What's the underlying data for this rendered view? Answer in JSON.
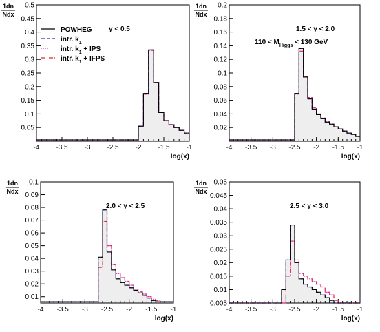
{
  "colors": {
    "powheg": "#000000",
    "intr_k1": "#2b2bd6",
    "intr_k1_ips": "#e040e0",
    "intr_k1_ifps": "#e82020",
    "fill": "#eeeeee"
  },
  "legend": {
    "entries": [
      {
        "key": "powheg",
        "label": "POWHEG",
        "dash": ""
      },
      {
        "key": "intr_k1",
        "label": "intr. k",
        "sub": "1",
        "dash": "5,3"
      },
      {
        "key": "intr_k1_ips",
        "label": "intr. k",
        "sub": "1",
        "suffix": " + IPS",
        "dash": "1,2"
      },
      {
        "key": "intr_k1_ifps",
        "label": "intr. k",
        "sub": "1",
        "suffix": " + IFPS",
        "dash": "6,2,1,2"
      }
    ]
  },
  "ylabel": {
    "num": "1dn",
    "den": "Ndx"
  },
  "chart_data": [
    {
      "type": "line",
      "panel": "top-left",
      "title": "y < 0.5",
      "xlabel": "log(x)",
      "xlim": [
        -4,
        -1
      ],
      "ylim": [
        0,
        0.5
      ],
      "x_ticks": [
        "-4",
        "-3.5",
        "-3",
        "-2.5",
        "-2",
        "-1.5",
        "-1"
      ],
      "y_ticks": [
        "0.05",
        "0.1",
        "0.15",
        "0.2",
        "0.25",
        "0.3",
        "0.35",
        "0.4",
        "0.45",
        "0.5"
      ],
      "bin_width": 0.1,
      "x_bin_start": [
        -4.0,
        -3.9,
        -3.8,
        -3.7,
        -3.6,
        -3.5,
        -3.4,
        -3.3,
        -3.2,
        -3.1,
        -3.0,
        -2.9,
        -2.8,
        -2.7,
        -2.6,
        -2.5,
        -2.4,
        -2.3,
        -2.2,
        -2.1,
        -2.0,
        -1.9,
        -1.8,
        -1.7,
        -1.6,
        -1.5,
        -1.4,
        -1.3,
        -1.2,
        -1.1
      ],
      "series": [
        {
          "name": "POWHEG",
          "key": "powheg",
          "values": [
            0.005,
            0.005,
            0.005,
            0.005,
            0.005,
            0.005,
            0.005,
            0.005,
            0.005,
            0.005,
            0.005,
            0.005,
            0.005,
            0.005,
            0.005,
            0.005,
            0.005,
            0.005,
            0.005,
            0.005,
            0.055,
            0.175,
            0.335,
            0.215,
            0.105,
            0.075,
            0.06,
            0.05,
            0.04,
            0.03
          ]
        },
        {
          "name": "intr. k1",
          "key": "intr_k1",
          "values": [
            0.005,
            0.005,
            0.005,
            0.005,
            0.005,
            0.005,
            0.005,
            0.005,
            0.005,
            0.005,
            0.005,
            0.005,
            0.005,
            0.005,
            0.005,
            0.005,
            0.005,
            0.005,
            0.005,
            0.005,
            0.055,
            0.175,
            0.335,
            0.215,
            0.105,
            0.075,
            0.06,
            0.05,
            0.04,
            0.03
          ]
        },
        {
          "name": "intr. k1 + IPS",
          "key": "intr_k1_ips",
          "values": [
            0.005,
            0.005,
            0.005,
            0.005,
            0.005,
            0.005,
            0.005,
            0.005,
            0.005,
            0.005,
            0.005,
            0.005,
            0.005,
            0.005,
            0.005,
            0.005,
            0.005,
            0.005,
            0.005,
            0.005,
            0.055,
            0.172,
            0.333,
            0.215,
            0.106,
            0.076,
            0.061,
            0.05,
            0.04,
            0.03
          ]
        },
        {
          "name": "intr. k1 + IFPS",
          "key": "intr_k1_ifps",
          "values": [
            0.005,
            0.005,
            0.005,
            0.005,
            0.005,
            0.005,
            0.005,
            0.005,
            0.005,
            0.005,
            0.005,
            0.005,
            0.005,
            0.005,
            0.005,
            0.005,
            0.005,
            0.005,
            0.005,
            0.005,
            0.055,
            0.172,
            0.333,
            0.215,
            0.106,
            0.076,
            0.061,
            0.05,
            0.04,
            0.03
          ]
        }
      ]
    },
    {
      "type": "line",
      "panel": "top-right",
      "title": "1.5 < y < 2.0",
      "subtitle": "110 < M",
      "subtitle_sub": "Higgs",
      "subtitle_end": " < 130 GeV",
      "xlabel": "log(x)",
      "xlim": [
        -4,
        -1
      ],
      "ylim": [
        0,
        0.2
      ],
      "x_ticks": [
        "-4",
        "-3.5",
        "-3",
        "-2.5",
        "-2",
        "-1.5",
        "-1"
      ],
      "y_ticks": [
        "0.02",
        "0.04",
        "0.06",
        "0.08",
        "0.1",
        "0.12",
        "0.14",
        "0.16",
        "0.18",
        "0.2"
      ],
      "bin_width": 0.1,
      "x_bin_start": [
        -4.0,
        -3.9,
        -3.8,
        -3.7,
        -3.6,
        -3.5,
        -3.4,
        -3.3,
        -3.2,
        -3.1,
        -3.0,
        -2.9,
        -2.8,
        -2.7,
        -2.6,
        -2.5,
        -2.4,
        -2.3,
        -2.2,
        -2.1,
        -2.0,
        -1.9,
        -1.8,
        -1.7,
        -1.6,
        -1.5,
        -1.4,
        -1.3,
        -1.2,
        -1.1
      ],
      "series": [
        {
          "name": "POWHEG",
          "key": "powheg",
          "values": [
            0.002,
            0.002,
            0.002,
            0.002,
            0.002,
            0.002,
            0.002,
            0.002,
            0.002,
            0.002,
            0.002,
            0.002,
            0.002,
            0.002,
            0.002,
            0.07,
            0.136,
            0.094,
            0.062,
            0.047,
            0.039,
            0.033,
            0.028,
            0.025,
            0.021,
            0.018,
            0.015,
            0.012,
            0.01,
            0.007
          ]
        },
        {
          "name": "intr. k1",
          "key": "intr_k1",
          "values": [
            0.002,
            0.002,
            0.002,
            0.002,
            0.002,
            0.002,
            0.002,
            0.002,
            0.002,
            0.002,
            0.002,
            0.002,
            0.002,
            0.002,
            0.002,
            0.07,
            0.136,
            0.094,
            0.062,
            0.047,
            0.039,
            0.033,
            0.028,
            0.025,
            0.021,
            0.018,
            0.015,
            0.012,
            0.01,
            0.007
          ]
        },
        {
          "name": "intr. k1 + IPS",
          "key": "intr_k1_ips",
          "values": [
            0.002,
            0.002,
            0.002,
            0.002,
            0.002,
            0.002,
            0.002,
            0.002,
            0.002,
            0.002,
            0.002,
            0.002,
            0.002,
            0.002,
            0.002,
            0.069,
            0.132,
            0.095,
            0.064,
            0.049,
            0.04,
            0.034,
            0.029,
            0.025,
            0.021,
            0.018,
            0.015,
            0.012,
            0.01,
            0.007
          ]
        },
        {
          "name": "intr. k1 + IFPS",
          "key": "intr_k1_ifps",
          "values": [
            0.002,
            0.002,
            0.002,
            0.002,
            0.002,
            0.002,
            0.002,
            0.002,
            0.002,
            0.002,
            0.002,
            0.002,
            0.002,
            0.002,
            0.002,
            0.069,
            0.132,
            0.095,
            0.064,
            0.049,
            0.04,
            0.034,
            0.029,
            0.025,
            0.021,
            0.018,
            0.015,
            0.012,
            0.01,
            0.007
          ]
        }
      ]
    },
    {
      "type": "line",
      "panel": "bottom-left",
      "title": "2.0 < y < 2.5",
      "xlabel": "log(x)",
      "xlim": [
        -4,
        -1
      ],
      "ylim": [
        0.005,
        0.1
      ],
      "x_ticks": [
        "-4",
        "-3.5",
        "-3",
        "-2.5",
        "-2",
        "-1.5",
        "-1"
      ],
      "y_ticks": [
        "0.01",
        "0.02",
        "0.03",
        "0.04",
        "0.05",
        "0.06",
        "0.07",
        "0.08",
        "0.09",
        "0.1"
      ],
      "bin_width": 0.1,
      "x_bin_start": [
        -4.0,
        -3.9,
        -3.8,
        -3.7,
        -3.6,
        -3.5,
        -3.4,
        -3.3,
        -3.2,
        -3.1,
        -3.0,
        -2.9,
        -2.8,
        -2.7,
        -2.6,
        -2.5,
        -2.4,
        -2.3,
        -2.2,
        -2.1,
        -2.0,
        -1.9,
        -1.8,
        -1.7,
        -1.6,
        -1.5,
        -1.4,
        -1.3,
        -1.2,
        -1.1
      ],
      "series": [
        {
          "name": "POWHEG",
          "key": "powheg",
          "values": [
            0.006,
            0.006,
            0.006,
            0.006,
            0.006,
            0.006,
            0.006,
            0.006,
            0.006,
            0.006,
            0.006,
            0.006,
            0.006,
            0.041,
            0.078,
            0.045,
            0.031,
            0.024,
            0.021,
            0.019,
            0.017,
            0.015,
            0.013,
            0.011,
            0.009,
            0.007,
            0.006,
            0.006,
            0.006,
            0.006
          ]
        },
        {
          "name": "intr. k1",
          "key": "intr_k1",
          "values": [
            0.006,
            0.006,
            0.006,
            0.006,
            0.006,
            0.006,
            0.006,
            0.006,
            0.006,
            0.006,
            0.006,
            0.006,
            0.006,
            0.041,
            0.078,
            0.045,
            0.031,
            0.024,
            0.021,
            0.019,
            0.017,
            0.015,
            0.013,
            0.011,
            0.009,
            0.007,
            0.006,
            0.006,
            0.006,
            0.006
          ]
        },
        {
          "name": "intr. k1 + IPS",
          "key": "intr_k1_ips",
          "values": [
            0.006,
            0.006,
            0.006,
            0.006,
            0.006,
            0.006,
            0.006,
            0.006,
            0.006,
            0.006,
            0.006,
            0.006,
            0.006,
            0.033,
            0.069,
            0.05,
            0.035,
            0.028,
            0.025,
            0.022,
            0.019,
            0.016,
            0.014,
            0.012,
            0.01,
            0.008,
            0.007,
            0.006,
            0.006,
            0.006
          ]
        },
        {
          "name": "intr. k1 + IFPS",
          "key": "intr_k1_ifps",
          "values": [
            0.006,
            0.006,
            0.006,
            0.006,
            0.006,
            0.006,
            0.006,
            0.006,
            0.006,
            0.006,
            0.006,
            0.006,
            0.006,
            0.033,
            0.069,
            0.05,
            0.035,
            0.028,
            0.025,
            0.022,
            0.019,
            0.016,
            0.014,
            0.012,
            0.01,
            0.008,
            0.007,
            0.006,
            0.006,
            0.006
          ]
        }
      ]
    },
    {
      "type": "line",
      "panel": "bottom-right",
      "title": "2.5 < y < 3.0",
      "xlabel": "log(x)",
      "xlim": [
        -4,
        -1
      ],
      "ylim": [
        0.005,
        0.05
      ],
      "x_ticks": [
        "-4",
        "-3.5",
        "-3",
        "-2.5",
        "-2",
        "-1.5",
        "-1"
      ],
      "y_ticks": [
        "0.005",
        "0.01",
        "0.015",
        "0.02",
        "0.025",
        "0.03",
        "0.035",
        "0.04",
        "0.045",
        "0.05"
      ],
      "bin_width": 0.1,
      "x_bin_start": [
        -4.0,
        -3.9,
        -3.8,
        -3.7,
        -3.6,
        -3.5,
        -3.4,
        -3.3,
        -3.2,
        -3.1,
        -3.0,
        -2.9,
        -2.8,
        -2.7,
        -2.6,
        -2.5,
        -2.4,
        -2.3,
        -2.2,
        -2.1,
        -2.0,
        -1.9,
        -1.8,
        -1.7,
        -1.6,
        -1.5,
        -1.4,
        -1.3,
        -1.2,
        -1.1
      ],
      "series": [
        {
          "name": "POWHEG",
          "key": "powheg",
          "values": [
            0.005,
            0.005,
            0.005,
            0.005,
            0.005,
            0.005,
            0.005,
            0.005,
            0.005,
            0.005,
            0.005,
            0.005,
            0.01,
            0.021,
            0.034,
            0.02,
            0.014,
            0.012,
            0.011,
            0.01,
            0.009,
            0.008,
            0.007,
            0.006,
            0.005,
            0.005,
            0.005,
            0.005,
            0.005,
            0.005
          ]
        },
        {
          "name": "intr. k1",
          "key": "intr_k1",
          "values": [
            0.005,
            0.005,
            0.005,
            0.005,
            0.005,
            0.005,
            0.005,
            0.005,
            0.005,
            0.005,
            0.005,
            0.005,
            0.01,
            0.021,
            0.034,
            0.02,
            0.014,
            0.012,
            0.011,
            0.01,
            0.009,
            0.008,
            0.007,
            0.006,
            0.005,
            0.005,
            0.005,
            0.005,
            0.005,
            0.005
          ]
        },
        {
          "name": "intr. k1 + IPS",
          "key": "intr_k1_ips",
          "values": [
            0.005,
            0.005,
            0.005,
            0.005,
            0.005,
            0.005,
            0.005,
            0.005,
            0.005,
            0.005,
            0.005,
            0.005,
            0.005,
            0.015,
            0.028,
            0.021,
            0.016,
            0.015,
            0.014,
            0.013,
            0.012,
            0.011,
            0.009,
            0.008,
            0.006,
            0.005,
            0.005,
            0.005,
            0.005,
            0.005
          ]
        },
        {
          "name": "intr. k1 + IFPS",
          "key": "intr_k1_ifps",
          "values": [
            0.005,
            0.005,
            0.005,
            0.005,
            0.005,
            0.005,
            0.005,
            0.005,
            0.005,
            0.005,
            0.005,
            0.005,
            0.005,
            0.015,
            0.028,
            0.021,
            0.016,
            0.015,
            0.014,
            0.013,
            0.012,
            0.011,
            0.009,
            0.008,
            0.006,
            0.005,
            0.005,
            0.005,
            0.005,
            0.005
          ]
        }
      ]
    }
  ]
}
